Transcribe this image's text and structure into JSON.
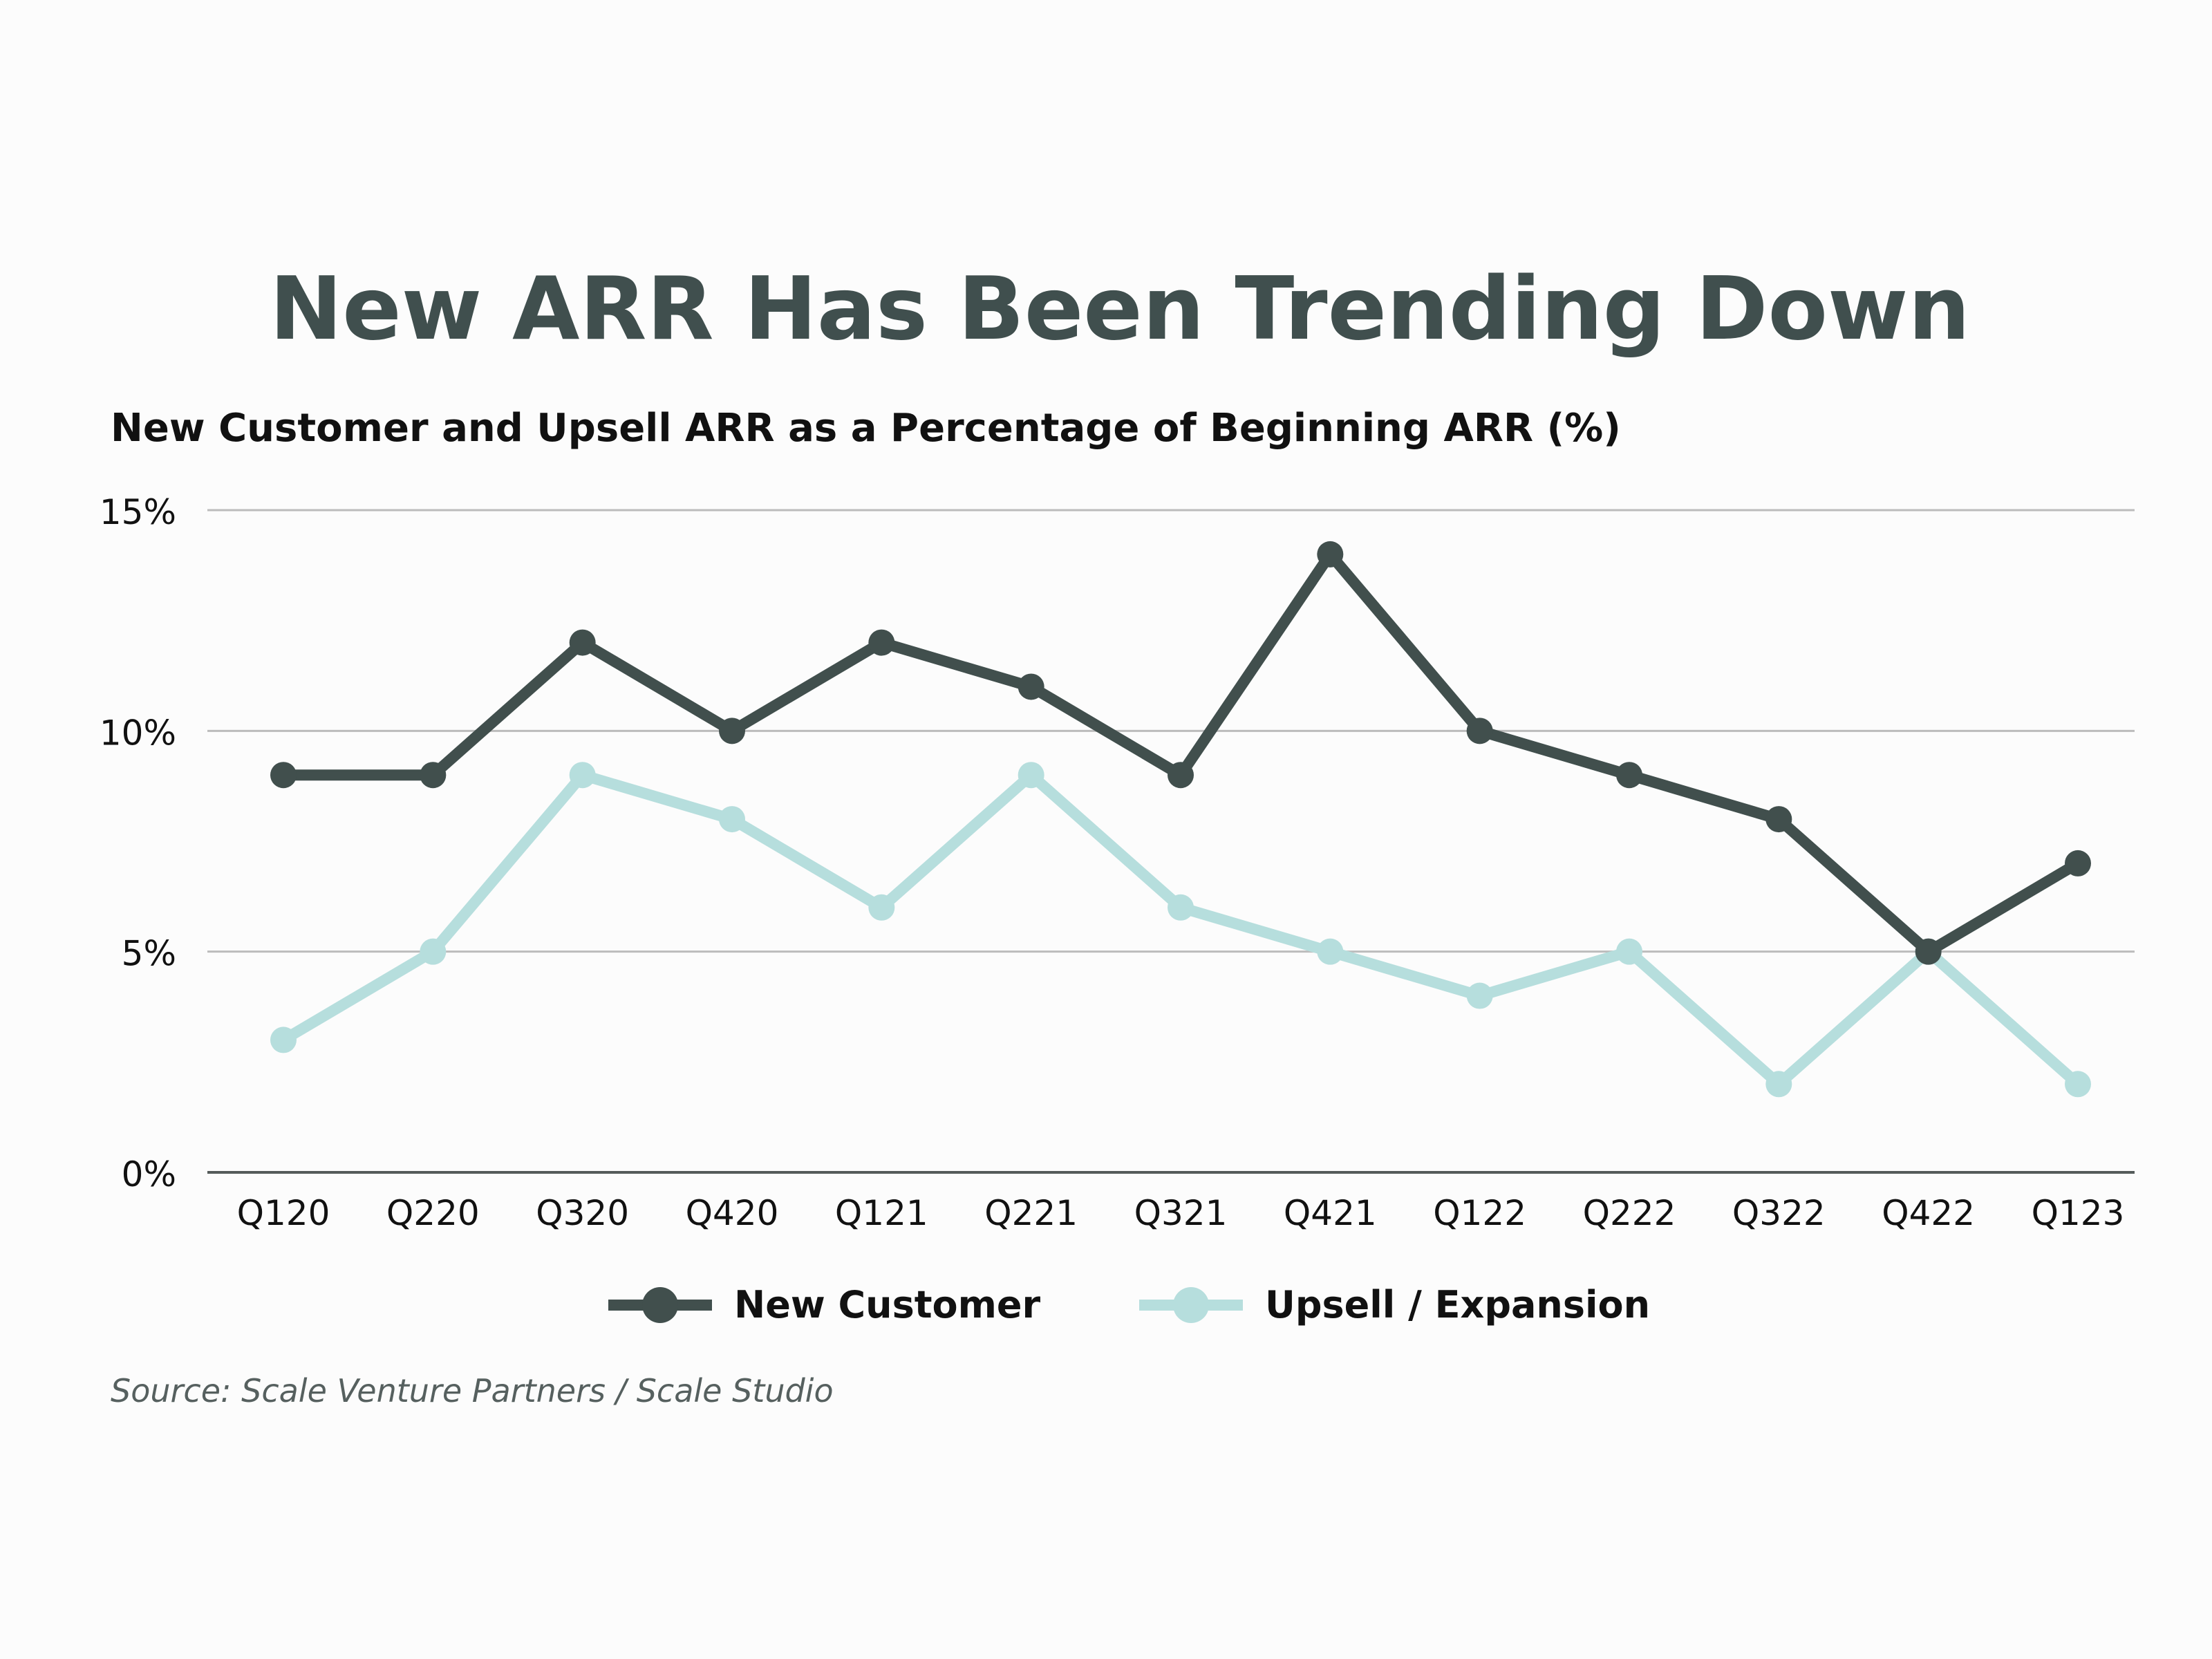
{
  "chart_data": {
    "type": "line",
    "title": "New ARR Has Been Trending Down",
    "subtitle": "New Customer and Upsell ARR as a Percentage of Beginning ARR (%)",
    "categories": [
      "Q120",
      "Q220",
      "Q320",
      "Q420",
      "Q121",
      "Q221",
      "Q321",
      "Q421",
      "Q122",
      "Q222",
      "Q322",
      "Q422",
      "Q123"
    ],
    "series": [
      {
        "name": "New Customer",
        "color": "#414f4d",
        "values": [
          9,
          9,
          12,
          10,
          12,
          11,
          9,
          14,
          10,
          9,
          8,
          5,
          7
        ]
      },
      {
        "name": "Upsell / Expansion",
        "color": "#b6dedd",
        "values": [
          3,
          5,
          9,
          8,
          6,
          9,
          6,
          5,
          4,
          5,
          2,
          5,
          2
        ]
      }
    ],
    "ylim": [
      0,
      15
    ],
    "yticks": [
      0,
      5,
      10,
      15
    ],
    "ytick_labels": [
      "0%",
      "5%",
      "10%",
      "15%"
    ],
    "grid": true,
    "legend_position": "bottom-center",
    "source": "Source: Scale Venture Partners / Scale Studio"
  }
}
